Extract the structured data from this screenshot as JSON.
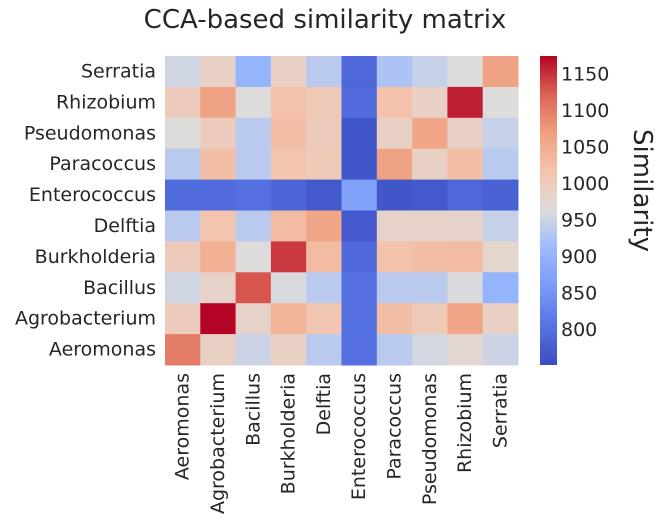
{
  "chart_data": {
    "type": "heatmap",
    "title": "CCA-based similarity matrix",
    "colorbar_label": "Similarity",
    "colormap": "coolwarm",
    "vmin": 752,
    "vmax": 1175,
    "colorbar_ticks": [
      800,
      850,
      900,
      950,
      1000,
      1050,
      1100,
      1150
    ],
    "colorbar_tick_labels": [
      "800",
      "850",
      "900",
      "950",
      "1000",
      "1050",
      "1100",
      "1150"
    ],
    "x_categories": [
      "Aeromonas",
      "Agrobacterium",
      "Bacillus",
      "Burkholderia",
      "Delftia",
      "Enterococcus",
      "Paracoccus",
      "Pseudomonas",
      "Rhizobium",
      "Serratia"
    ],
    "y_categories": [
      "Serratia",
      "Rhizobium",
      "Pseudomonas",
      "Paracoccus",
      "Enterococcus",
      "Delftia",
      "Burkholderia",
      "Bacillus",
      "Agrobacterium",
      "Aeromonas"
    ],
    "values": [
      [
        952,
        990,
        900,
        990,
        935,
        790,
        925,
        945,
        965,
        1065
      ],
      [
        1000,
        1065,
        965,
        1020,
        1005,
        795,
        1020,
        990,
        1160,
        965
      ],
      [
        965,
        1000,
        935,
        1025,
        1000,
        765,
        990,
        1060,
        990,
        945
      ],
      [
        935,
        1025,
        935,
        1015,
        1005,
        765,
        1065,
        990,
        1025,
        935
      ],
      [
        795,
        795,
        800,
        785,
        770,
        870,
        765,
        770,
        790,
        780
      ],
      [
        935,
        1015,
        935,
        1030,
        1060,
        770,
        985,
        985,
        985,
        945
      ],
      [
        1000,
        1045,
        965,
        1145,
        1030,
        790,
        1020,
        1025,
        1030,
        980
      ],
      [
        952,
        985,
        1130,
        960,
        935,
        800,
        935,
        935,
        960,
        900
      ],
      [
        1000,
        1175,
        985,
        1040,
        1010,
        800,
        1025,
        1005,
        1060,
        990
      ],
      [
        1100,
        990,
        950,
        990,
        935,
        800,
        935,
        955,
        975,
        950
      ]
    ]
  }
}
